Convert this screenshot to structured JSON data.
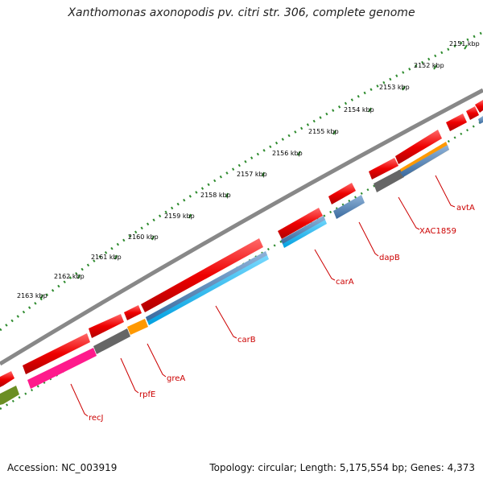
{
  "title": "Xanthomonas axonopodis pv. citri str. 306, complete genome",
  "footer": {
    "accession": "Accession: NC_003919",
    "topology": "Topology: circular; Length: 5,175,554 bp; Genes: 4,373"
  },
  "ticks": [
    "2151 kbp",
    "2152 kbp",
    "2153 kbp",
    "2154 kbp",
    "2155 kbp",
    "2156 kbp",
    "2157 kbp",
    "2158 kbp",
    "2159 kbp",
    "2160 kbp",
    "2161 kbp",
    "2162 kbp",
    "2163 kbp"
  ],
  "genes": [
    "avtA",
    "XAC1859",
    "dapB",
    "carA",
    "carB",
    "greA",
    "rpfE",
    "recJ"
  ],
  "colors": {
    "red": "#ee0000",
    "blue": "#4a7fb5",
    "cyan": "#00b8f0",
    "gray": "#666666",
    "orange": "#ff9900",
    "magenta": "#ff1a8c",
    "olive": "#6b8e23",
    "green_dots": "#2e8b2e",
    "backbone": "#888888"
  }
}
